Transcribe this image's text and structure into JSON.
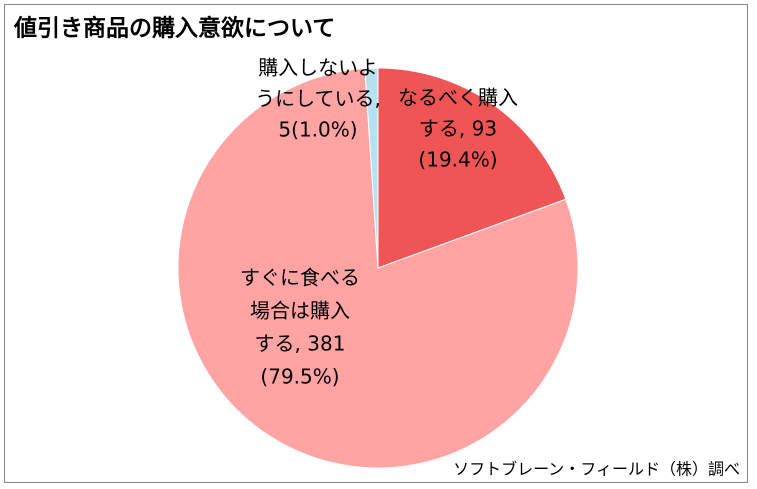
{
  "chart_data": {
    "type": "pie",
    "title": "値引き商品の購入意欲について",
    "source": "ソフトブレーン・フィールド（株）調べ",
    "values": [
      93,
      381,
      5
    ],
    "percentages": [
      19.4,
      79.5,
      1.0
    ],
    "colors": [
      "#f05555",
      "#ffa3a3",
      "#b7e1ef"
    ],
    "value_labels": [
      [
        "なるべく購入",
        "する, 93",
        "(19.4%)"
      ],
      [
        "すぐに食べる",
        "場合は購入",
        "する, 381",
        "(79.5%)"
      ],
      [
        "購入しないよ",
        "うにしている,",
        "5(1.0%)"
      ]
    ]
  }
}
